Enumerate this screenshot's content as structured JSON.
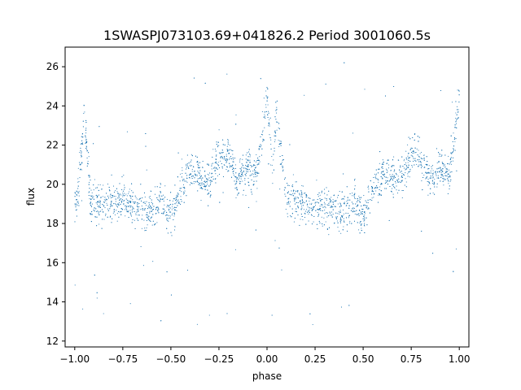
{
  "chart_data": {
    "type": "scatter",
    "title": "1SWASPJ073103.69+041826.2 Period 3001060.5s",
    "xlabel": "phase",
    "ylabel": "flux",
    "xlim": [
      -1.05,
      1.05
    ],
    "ylim": [
      11.7,
      27.0
    ],
    "xticks": [
      -1.0,
      -0.75,
      -0.5,
      -0.25,
      0.0,
      0.25,
      0.5,
      0.75,
      1.0
    ],
    "xtick_labels": [
      "−1.00",
      "−0.75",
      "−0.50",
      "−0.25",
      "0.00",
      "0.25",
      "0.50",
      "0.75",
      "1.00"
    ],
    "yticks": [
      12,
      14,
      16,
      18,
      20,
      22,
      24,
      26
    ],
    "ytick_labels": [
      "12",
      "14",
      "16",
      "18",
      "20",
      "22",
      "24",
      "26"
    ],
    "grid": false,
    "marker_color": "#1f77b4",
    "series": [
      {
        "profile": [
          {
            "x": -1.0,
            "y": 18.6
          },
          {
            "x": -0.97,
            "y": 20.8
          },
          {
            "x": -0.95,
            "y": 23.8
          },
          {
            "x": -0.92,
            "y": 19.2
          },
          {
            "x": -0.85,
            "y": 19.0
          },
          {
            "x": -0.75,
            "y": 19.1
          },
          {
            "x": -0.68,
            "y": 18.8
          },
          {
            "x": -0.6,
            "y": 18.7
          },
          {
            "x": -0.55,
            "y": 19.3
          },
          {
            "x": -0.5,
            "y": 18.3
          },
          {
            "x": -0.45,
            "y": 19.8
          },
          {
            "x": -0.4,
            "y": 20.8
          },
          {
            "x": -0.35,
            "y": 20.4
          },
          {
            "x": -0.3,
            "y": 20.0
          },
          {
            "x": -0.25,
            "y": 21.6
          },
          {
            "x": -0.2,
            "y": 21.4
          },
          {
            "x": -0.15,
            "y": 20.2
          },
          {
            "x": -0.1,
            "y": 20.9
          },
          {
            "x": -0.05,
            "y": 20.4
          },
          {
            "x": 0.0,
            "y": 24.5
          },
          {
            "x": 0.03,
            "y": 20.8
          },
          {
            "x": 0.05,
            "y": 23.8
          },
          {
            "x": 0.1,
            "y": 19.2
          },
          {
            "x": 0.2,
            "y": 19.0
          },
          {
            "x": 0.3,
            "y": 18.9
          },
          {
            "x": 0.4,
            "y": 18.6
          },
          {
            "x": 0.45,
            "y": 19.3
          },
          {
            "x": 0.5,
            "y": 18.3
          },
          {
            "x": 0.55,
            "y": 19.8
          },
          {
            "x": 0.6,
            "y": 20.6
          },
          {
            "x": 0.65,
            "y": 20.4
          },
          {
            "x": 0.7,
            "y": 20.1
          },
          {
            "x": 0.75,
            "y": 21.6
          },
          {
            "x": 0.8,
            "y": 21.4
          },
          {
            "x": 0.85,
            "y": 20.2
          },
          {
            "x": 0.9,
            "y": 20.9
          },
          {
            "x": 0.95,
            "y": 20.4
          },
          {
            "x": 1.0,
            "y": 24.5
          }
        ]
      }
    ]
  }
}
